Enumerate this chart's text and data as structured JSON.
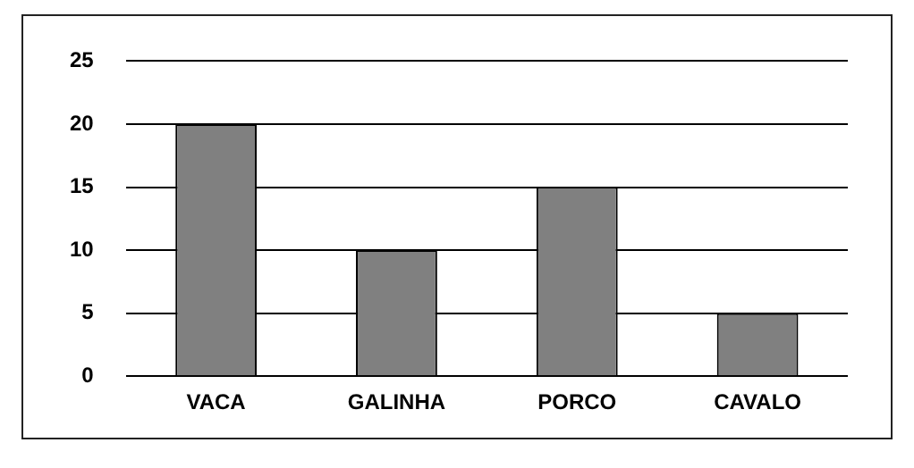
{
  "chart_data": {
    "type": "bar",
    "categories": [
      "VACA",
      "GALINHA",
      "PORCO",
      "CAVALO"
    ],
    "values": [
      20,
      10,
      15,
      5
    ],
    "color": "#808080",
    "ylim": [
      0,
      25
    ],
    "yticks": [
      0,
      5,
      10,
      15,
      20,
      25
    ],
    "grid": "y",
    "legend": false
  }
}
